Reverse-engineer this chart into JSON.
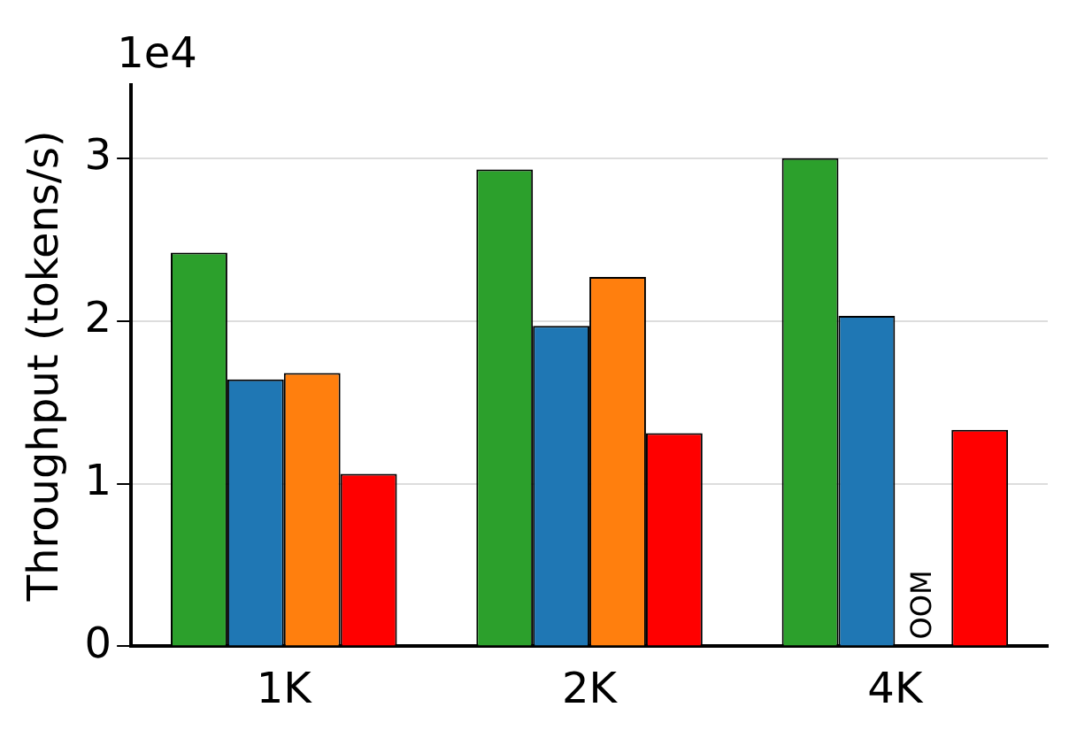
{
  "chart_data": {
    "type": "bar",
    "ylabel": "Throughput (tokens/s)",
    "categories": [
      "1K",
      "2K",
      "4K"
    ],
    "series": [
      {
        "color": "#2ca02c",
        "values": [
          2.42,
          2.93,
          3.0
        ]
      },
      {
        "color": "#1f77b4",
        "values": [
          1.64,
          1.97,
          2.03
        ]
      },
      {
        "color": "#ff7f0e",
        "values": [
          1.68,
          2.27,
          null
        ]
      },
      {
        "color": "#ff0000",
        "values": [
          1.06,
          1.31,
          1.33
        ]
      }
    ],
    "ylim": [
      0,
      3.45
    ],
    "yticks": [
      0,
      1,
      2,
      3
    ],
    "grid": "y",
    "legend": false,
    "annotations": [
      "1e4",
      {
        "text": "OOM",
        "x": "4K",
        "y": 0
      }
    ]
  }
}
